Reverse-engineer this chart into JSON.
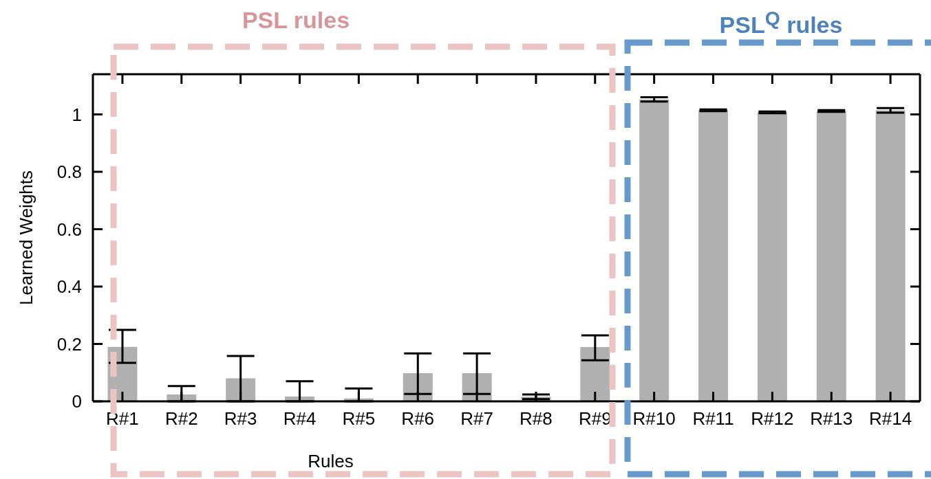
{
  "chart_data": {
    "type": "bar",
    "xlabel": "Rules",
    "ylabel": "Learned Weights",
    "categories": [
      "R#1",
      "R#2",
      "R#3",
      "R#4",
      "R#5",
      "R#6",
      "R#7",
      "R#8",
      "R#9",
      "R#10",
      "R#11",
      "R#12",
      "R#13",
      "R#14"
    ],
    "values": [
      0.19,
      0.024,
      0.08,
      0.017,
      0.01,
      0.098,
      0.098,
      0.016,
      0.189,
      1.052,
      1.014,
      1.007,
      1.012,
      1.014
    ],
    "errors": [
      [
        0.134,
        0.249
      ],
      [
        0,
        0.053
      ],
      [
        0,
        0.158
      ],
      [
        0,
        0.07
      ],
      [
        0,
        0.045
      ],
      [
        0.026,
        0.167
      ],
      [
        0.026,
        0.167
      ],
      [
        0.008,
        0.024
      ],
      [
        0.143,
        0.23
      ],
      [
        1.045,
        1.06
      ],
      [
        1.011,
        1.017
      ],
      [
        1.004,
        1.01
      ],
      [
        1.009,
        1.015
      ],
      [
        1.006,
        1.022
      ]
    ],
    "color": "#b0b0b0",
    "ylim": [
      0,
      1.14
    ],
    "yticks": [
      0,
      0.2,
      0.4,
      0.6,
      0.8,
      1
    ],
    "grid": false,
    "annotations": [
      "PSL rules",
      "PSL$^{Q}$ rules"
    ]
  }
}
